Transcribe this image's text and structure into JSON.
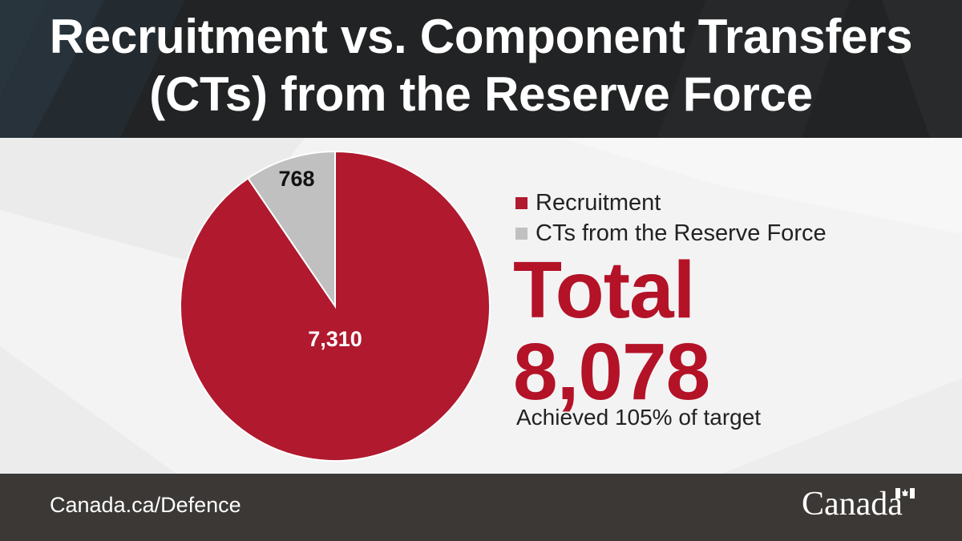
{
  "header": {
    "title_line1": "Recruitment vs. Component Transfers",
    "title_line2": "(CTs) from the Reserve Force"
  },
  "colors": {
    "recruitment": "#b0192e",
    "cts": "#c0c0c0",
    "total": "#b41227",
    "header_bg": "#222324",
    "footer_bg": "#3b3836"
  },
  "chart_data": {
    "type": "pie",
    "categories": [
      "Recruitment",
      "CTs from the Reserve Force"
    ],
    "values": [
      7310,
      768
    ],
    "data_labels": [
      "7,310",
      "768"
    ],
    "legend_position": "right",
    "start_angle": "12 o'clock",
    "direction": "counter-clockwise for CTs slice"
  },
  "legend": {
    "items": [
      {
        "label": "Recruitment",
        "color": "#b0192e"
      },
      {
        "label": "CTs from the Reserve Force",
        "color": "#c0c0c0"
      }
    ]
  },
  "summary": {
    "total_label": "Total",
    "total_value": "8,078",
    "achieved": "Achieved 105% of target"
  },
  "footer": {
    "link": "Canada.ca/Defence",
    "wordmark": "Canada"
  }
}
